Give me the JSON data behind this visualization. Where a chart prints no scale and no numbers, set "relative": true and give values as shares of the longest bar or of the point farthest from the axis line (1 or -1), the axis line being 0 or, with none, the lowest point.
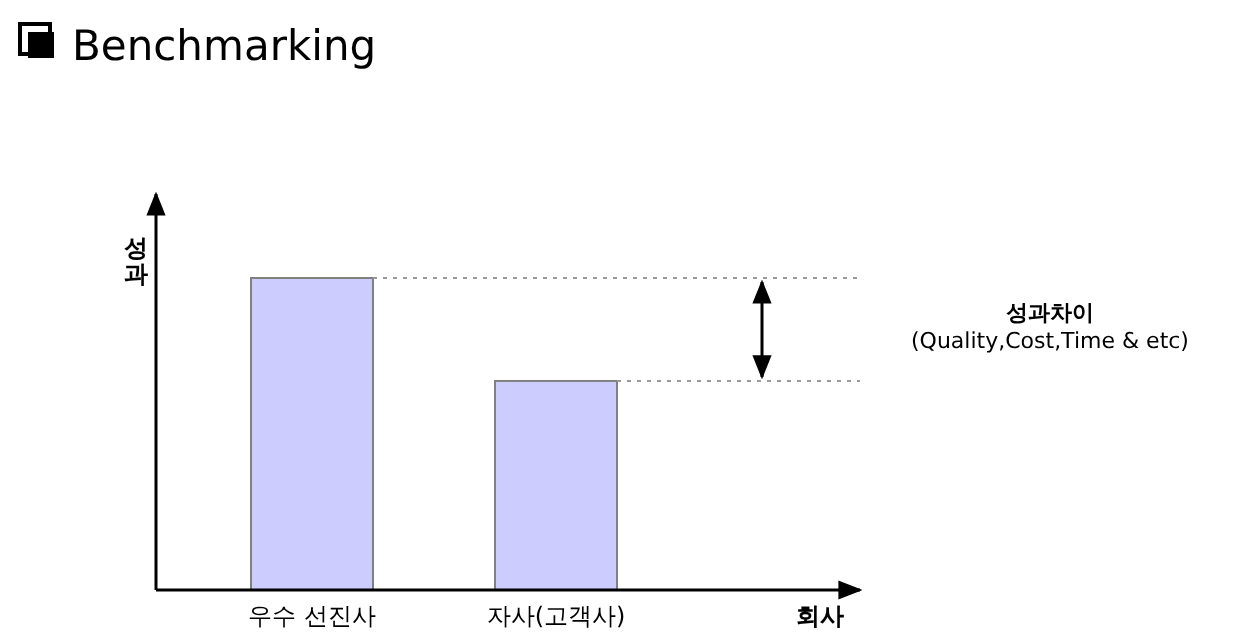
{
  "chart_data": {
    "type": "bar",
    "title": "Benchmarking",
    "xlabel": "회사",
    "ylabel": "성과",
    "relative": true,
    "categories": [
      "우수 선진사",
      "자사(고객사)"
    ],
    "values": [
      1,
      0.67
    ],
    "color": "#ccccff",
    "ref_lines": [
      {
        "axis": "y",
        "value": 1,
        "color": "#999999",
        "line_style": "dotted"
      },
      {
        "axis": "y",
        "value": 0.67,
        "color": "#999999",
        "line_style": "dotted"
      }
    ],
    "annotations": [
      "성과차이\n(Quality,Cost,Time & etc)"
    ]
  }
}
